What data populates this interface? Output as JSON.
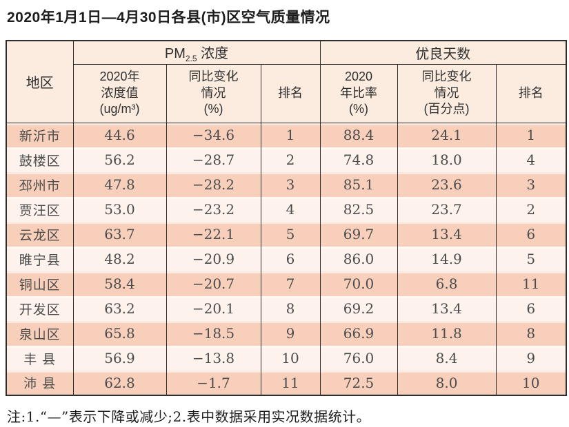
{
  "title": "2020年1月1日—4月30日各县(市)区空气质量情况",
  "table": {
    "region_header": "地区",
    "group_pm": {
      "prefix": "PM",
      "sub": "2.5",
      "suffix": " 浓度"
    },
    "group_good": "优良天数",
    "col_headers": [
      "2020年\n浓度值\n(ug/m³)",
      "同比变化\n情况\n(%)",
      "排名",
      "2020\n年比率\n(%)",
      "同比变化\n情况\n(百分点)",
      "排名"
    ],
    "rows": [
      {
        "region": "新沂市",
        "pm_value": "44.6",
        "pm_change": "−34.6",
        "pm_rank": "1",
        "good_ratio": "88.4",
        "good_change": "24.1",
        "good_rank": "1"
      },
      {
        "region": "鼓楼区",
        "pm_value": "56.2",
        "pm_change": "−28.7",
        "pm_rank": "2",
        "good_ratio": "74.8",
        "good_change": "18.0",
        "good_rank": "4"
      },
      {
        "region": "邳州市",
        "pm_value": "47.8",
        "pm_change": "−28.2",
        "pm_rank": "3",
        "good_ratio": "85.1",
        "good_change": "23.6",
        "good_rank": "3"
      },
      {
        "region": "贾汪区",
        "pm_value": "53.0",
        "pm_change": "−23.2",
        "pm_rank": "4",
        "good_ratio": "82.5",
        "good_change": "23.7",
        "good_rank": "2"
      },
      {
        "region": "云龙区",
        "pm_value": "63.7",
        "pm_change": "−22.1",
        "pm_rank": "5",
        "good_ratio": "69.7",
        "good_change": "13.4",
        "good_rank": "6"
      },
      {
        "region": "睢宁县",
        "pm_value": "48.2",
        "pm_change": "−20.9",
        "pm_rank": "6",
        "good_ratio": "86.0",
        "good_change": "14.9",
        "good_rank": "5"
      },
      {
        "region": "铜山区",
        "pm_value": "58.4",
        "pm_change": "−20.7",
        "pm_rank": "7",
        "good_ratio": "70.0",
        "good_change": "6.8",
        "good_rank": "11"
      },
      {
        "region": "开发区",
        "pm_value": "63.2",
        "pm_change": "−20.1",
        "pm_rank": "8",
        "good_ratio": "69.2",
        "good_change": "13.4",
        "good_rank": "6"
      },
      {
        "region": "泉山区",
        "pm_value": "65.8",
        "pm_change": "−18.5",
        "pm_rank": "9",
        "good_ratio": "66.9",
        "good_change": "11.8",
        "good_rank": "8"
      },
      {
        "region": "丰 县",
        "pm_value": "56.9",
        "pm_change": "−13.8",
        "pm_rank": "10",
        "good_ratio": "76.0",
        "good_change": "8.4",
        "good_rank": "9"
      },
      {
        "region": "沛 县",
        "pm_value": "62.8",
        "pm_change": "−1.7",
        "pm_rank": "11",
        "good_ratio": "72.5",
        "good_change": "8.0",
        "good_rank": "10"
      }
    ]
  },
  "note": "注:1.“—”表示下降或减少;2.表中数据采用实况数据统计。",
  "colors": {
    "band_dark": "#f8cfba",
    "band_light": "#fdf2ec",
    "header_bg": "#fcecdf",
    "grid": "#2d2d2d",
    "text_dark": "#1d1d1d",
    "text_data": "#4c4c4c"
  }
}
